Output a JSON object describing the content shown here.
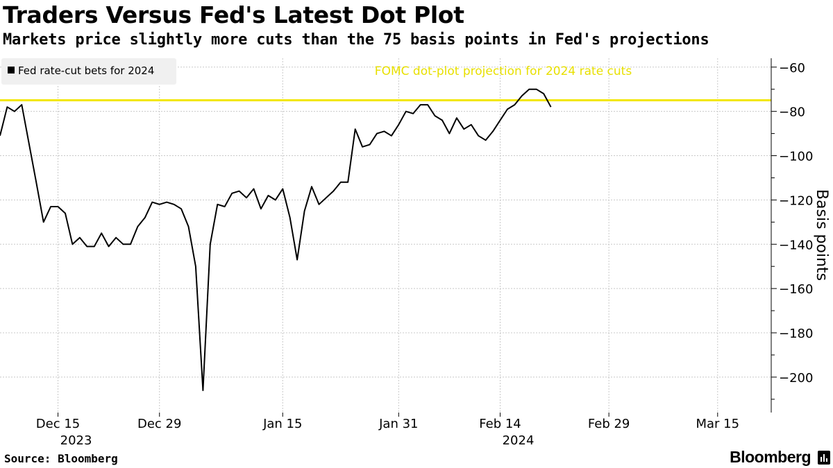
{
  "title": "Traders Versus Fed's Latest Dot Plot",
  "subtitle": "Markets price slightly more cuts than the 75 basis points in Fed's projections",
  "source": "Source: Bloomberg",
  "brand": "Bloomberg",
  "colors": {
    "series": "#000000",
    "reference": "#f2e600",
    "reference_label": "#e8e000",
    "grid": "#c8c8c8",
    "legend_bg": "#f0f0f0"
  },
  "chart_data": {
    "type": "line",
    "title": "Traders Versus Fed's Latest Dot Plot",
    "ylabel": "Basis points",
    "xlabel": "",
    "ylim": [
      -216,
      -56
    ],
    "yticks": [
      -60,
      -80,
      -100,
      -120,
      -140,
      -160,
      -180,
      -200
    ],
    "x_range": [
      "2023-12-07",
      "2024-03-20"
    ],
    "xticks": [
      {
        "date": "2023-12-15",
        "label": "Dec 15",
        "year": "2023"
      },
      {
        "date": "2023-12-29",
        "label": "Dec 29",
        "year": ""
      },
      {
        "date": "2024-01-15",
        "label": "Jan 15",
        "year": ""
      },
      {
        "date": "2024-01-31",
        "label": "Jan 31",
        "year": ""
      },
      {
        "date": "2024-02-14",
        "label": "Feb 14",
        "year": "2024"
      },
      {
        "date": "2024-02-29",
        "label": "Feb 29",
        "year": ""
      },
      {
        "date": "2024-03-15",
        "label": "Mar 15",
        "year": ""
      }
    ],
    "grid": true,
    "legend": "top-left",
    "series": [
      {
        "name": "Fed rate-cut bets for 2024",
        "points": [
          [
            "2023-12-07",
            -91
          ],
          [
            "2023-12-08",
            -78
          ],
          [
            "2023-12-09",
            -80
          ],
          [
            "2023-12-10",
            -77
          ],
          [
            "2023-12-12",
            -112
          ],
          [
            "2023-12-13",
            -130
          ],
          [
            "2023-12-14",
            -123
          ],
          [
            "2023-12-15",
            -123
          ],
          [
            "2023-12-16",
            -126
          ],
          [
            "2023-12-17",
            -140
          ],
          [
            "2023-12-18",
            -137
          ],
          [
            "2023-12-19",
            -141
          ],
          [
            "2023-12-20",
            -141
          ],
          [
            "2023-12-21",
            -135
          ],
          [
            "2023-12-22",
            -141
          ],
          [
            "2023-12-23",
            -137
          ],
          [
            "2023-12-24",
            -140
          ],
          [
            "2023-12-25",
            -140
          ],
          [
            "2023-12-26",
            -132
          ],
          [
            "2023-12-27",
            -128
          ],
          [
            "2023-12-28",
            -121
          ],
          [
            "2023-12-29",
            -122
          ],
          [
            "2023-12-30",
            -121
          ],
          [
            "2023-12-31",
            -122
          ],
          [
            "2024-01-01",
            -124
          ],
          [
            "2024-01-02",
            -132
          ],
          [
            "2024-01-03",
            -150
          ],
          [
            "2024-01-04",
            -206
          ],
          [
            "2024-01-05",
            -140
          ],
          [
            "2024-01-06",
            -122
          ],
          [
            "2024-01-07",
            -123
          ],
          [
            "2024-01-08",
            -117
          ],
          [
            "2024-01-09",
            -116
          ],
          [
            "2024-01-10",
            -119
          ],
          [
            "2024-01-11",
            -115
          ],
          [
            "2024-01-12",
            -124
          ],
          [
            "2024-01-13",
            -118
          ],
          [
            "2024-01-14",
            -120
          ],
          [
            "2024-01-15",
            -115
          ],
          [
            "2024-01-16",
            -128
          ],
          [
            "2024-01-17",
            -147
          ],
          [
            "2024-01-18",
            -125
          ],
          [
            "2024-01-19",
            -114
          ],
          [
            "2024-01-20",
            -122
          ],
          [
            "2024-01-21",
            -119
          ],
          [
            "2024-01-22",
            -116
          ],
          [
            "2024-01-23",
            -112
          ],
          [
            "2024-01-24",
            -112
          ],
          [
            "2024-01-25",
            -88
          ],
          [
            "2024-01-26",
            -96
          ],
          [
            "2024-01-27",
            -95
          ],
          [
            "2024-01-28",
            -90
          ],
          [
            "2024-01-29",
            -89
          ],
          [
            "2024-01-30",
            -91
          ],
          [
            "2024-01-31",
            -86
          ],
          [
            "2024-02-01",
            -80
          ],
          [
            "2024-02-02",
            -81
          ],
          [
            "2024-02-03",
            -77
          ],
          [
            "2024-02-04",
            -77
          ],
          [
            "2024-02-05",
            -82
          ],
          [
            "2024-02-06",
            -84
          ],
          [
            "2024-02-07",
            -90
          ],
          [
            "2024-02-08",
            -83
          ],
          [
            "2024-02-09",
            -88
          ],
          [
            "2024-02-10",
            -86
          ],
          [
            "2024-02-11",
            -91
          ],
          [
            "2024-02-12",
            -93
          ],
          [
            "2024-02-13",
            -89
          ],
          [
            "2024-02-14",
            -84
          ],
          [
            "2024-02-15",
            -79
          ],
          [
            "2024-02-16",
            -77
          ],
          [
            "2024-02-17",
            -73
          ],
          [
            "2024-02-18",
            -70
          ],
          [
            "2024-02-19",
            -70
          ],
          [
            "2024-02-20",
            -72
          ],
          [
            "2024-02-21",
            -78
          ]
        ]
      }
    ],
    "reference_line": {
      "value": -75,
      "label": "FOMC dot-plot projection for 2024 rate cuts"
    }
  }
}
